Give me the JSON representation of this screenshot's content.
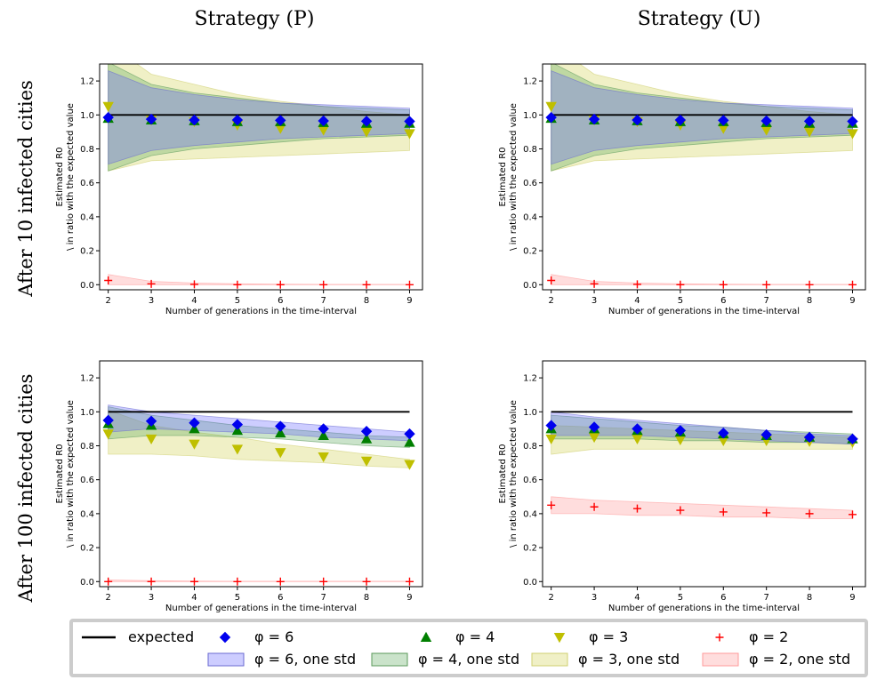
{
  "columns": [
    "Strategy (P)",
    "Strategy (U)"
  ],
  "rows": [
    "After 10 infected cities",
    "After 100 infected cities"
  ],
  "legend": {
    "rows": [
      [
        {
          "key": "expected",
          "label": "expected",
          "kind": "line",
          "color": "#000000"
        },
        {
          "key": "phi6",
          "label": "φ = 6",
          "kind": "marker",
          "marker": "diamond",
          "color": "#0000ee"
        },
        {
          "key": "phi4",
          "label": "φ = 4",
          "kind": "marker",
          "marker": "triangle-up",
          "color": "#007f00"
        },
        {
          "key": "phi3",
          "label": "φ = 3",
          "kind": "marker",
          "marker": "triangle-down",
          "color": "#bfbf00"
        },
        {
          "key": "phi2",
          "label": "φ = 2",
          "kind": "marker",
          "marker": "plus",
          "color": "#ff0000"
        }
      ],
      [
        {
          "key": "phi6std",
          "label": "φ = 6, one std",
          "kind": "band",
          "color": "#0000ff"
        },
        {
          "key": "phi4std",
          "label": "φ = 4, one std",
          "kind": "band",
          "color": "#008000"
        },
        {
          "key": "phi3std",
          "label": "φ = 3, one std",
          "kind": "band",
          "color": "#bfbf00"
        },
        {
          "key": "phi2std",
          "label": "φ = 2, one std",
          "kind": "band",
          "color": "#ff9999"
        }
      ]
    ]
  },
  "chart_data": [
    {
      "type": "scatter",
      "id": "p10",
      "xlabel": "Number of generations in the time-interval",
      "ylabel": "Estimated R0\n\\ in ratio with the expected value",
      "xlim": [
        1.8,
        9.3
      ],
      "ylim": [
        -0.03,
        1.3
      ],
      "x": [
        2,
        3,
        4,
        5,
        6,
        7,
        8,
        9
      ],
      "xticks": [
        2,
        3,
        4,
        5,
        6,
        7,
        8,
        9
      ],
      "yticks": [
        0.0,
        0.2,
        0.4,
        0.6,
        0.8,
        1.0,
        1.2
      ],
      "expected": 1.0,
      "series": [
        {
          "key": "phi3",
          "values": [
            1.05,
            0.97,
            0.96,
            0.94,
            0.92,
            0.91,
            0.9,
            0.89
          ],
          "band_low": [
            0.67,
            0.73,
            0.74,
            0.75,
            0.76,
            0.77,
            0.78,
            0.79
          ],
          "band_high": [
            1.42,
            1.24,
            1.18,
            1.12,
            1.08,
            1.05,
            1.02,
            1.0
          ]
        },
        {
          "key": "phi4",
          "values": [
            0.98,
            0.97,
            0.965,
            0.96,
            0.96,
            0.955,
            0.95,
            0.95
          ],
          "band_low": [
            0.67,
            0.76,
            0.8,
            0.82,
            0.84,
            0.86,
            0.87,
            0.88
          ],
          "band_high": [
            1.31,
            1.18,
            1.13,
            1.1,
            1.07,
            1.05,
            1.04,
            1.03
          ]
        },
        {
          "key": "phi6",
          "values": [
            0.985,
            0.975,
            0.97,
            0.97,
            0.968,
            0.965,
            0.963,
            0.962
          ],
          "band_low": [
            0.71,
            0.79,
            0.82,
            0.84,
            0.86,
            0.87,
            0.88,
            0.89
          ],
          "band_high": [
            1.26,
            1.16,
            1.12,
            1.09,
            1.07,
            1.06,
            1.05,
            1.04
          ]
        },
        {
          "key": "phi2",
          "values": [
            0.025,
            0.005,
            0.002,
            0.0,
            0.0,
            0.0,
            0.0,
            0.0
          ],
          "band_low": [
            0.0,
            0.0,
            0.0,
            0.0,
            0.0,
            0.0,
            0.0,
            0.0
          ],
          "band_high": [
            0.06,
            0.02,
            0.01,
            0.005,
            0.003,
            0.002,
            0.002,
            0.002
          ]
        }
      ]
    },
    {
      "type": "scatter",
      "id": "u10",
      "xlabel": "Number of generations in the time-interval",
      "ylabel": "Estimated R0\n\\ in ratio with the expected value",
      "xlim": [
        1.8,
        9.3
      ],
      "ylim": [
        -0.03,
        1.3
      ],
      "x": [
        2,
        3,
        4,
        5,
        6,
        7,
        8,
        9
      ],
      "xticks": [
        2,
        3,
        4,
        5,
        6,
        7,
        8,
        9
      ],
      "yticks": [
        0.0,
        0.2,
        0.4,
        0.6,
        0.8,
        1.0,
        1.2
      ],
      "expected": 1.0,
      "series": [
        {
          "key": "phi3",
          "values": [
            1.05,
            0.97,
            0.96,
            0.94,
            0.92,
            0.91,
            0.9,
            0.89
          ],
          "band_low": [
            0.67,
            0.73,
            0.74,
            0.75,
            0.76,
            0.77,
            0.78,
            0.79
          ],
          "band_high": [
            1.42,
            1.24,
            1.18,
            1.12,
            1.08,
            1.05,
            1.02,
            1.0
          ]
        },
        {
          "key": "phi4",
          "values": [
            0.98,
            0.97,
            0.965,
            0.96,
            0.96,
            0.955,
            0.95,
            0.95
          ],
          "band_low": [
            0.67,
            0.76,
            0.8,
            0.82,
            0.84,
            0.86,
            0.87,
            0.88
          ],
          "band_high": [
            1.31,
            1.18,
            1.13,
            1.1,
            1.07,
            1.05,
            1.04,
            1.03
          ]
        },
        {
          "key": "phi6",
          "values": [
            0.985,
            0.975,
            0.97,
            0.97,
            0.968,
            0.965,
            0.963,
            0.962
          ],
          "band_low": [
            0.71,
            0.79,
            0.82,
            0.84,
            0.86,
            0.87,
            0.88,
            0.89
          ],
          "band_high": [
            1.26,
            1.16,
            1.12,
            1.09,
            1.07,
            1.06,
            1.05,
            1.04
          ]
        },
        {
          "key": "phi2",
          "values": [
            0.025,
            0.005,
            0.002,
            0.0,
            0.0,
            0.0,
            0.0,
            0.0
          ],
          "band_low": [
            0.0,
            0.0,
            0.0,
            0.0,
            0.0,
            0.0,
            0.0,
            0.0
          ],
          "band_high": [
            0.06,
            0.02,
            0.01,
            0.005,
            0.003,
            0.002,
            0.002,
            0.002
          ]
        }
      ]
    },
    {
      "type": "scatter",
      "id": "p100",
      "xlabel": "Number of generations in the time-interval",
      "ylabel": "Estimated R0\n\\ in ratio with the expected value",
      "xlim": [
        1.8,
        9.3
      ],
      "ylim": [
        -0.03,
        1.3
      ],
      "x": [
        2,
        3,
        4,
        5,
        6,
        7,
        8,
        9
      ],
      "xticks": [
        2,
        3,
        4,
        5,
        6,
        7,
        8,
        9
      ],
      "yticks": [
        0.0,
        0.2,
        0.4,
        0.6,
        0.8,
        1.0,
        1.2
      ],
      "expected": 1.0,
      "series": [
        {
          "key": "phi3",
          "values": [
            0.87,
            0.84,
            0.81,
            0.78,
            0.76,
            0.735,
            0.71,
            0.69
          ],
          "band_low": [
            0.75,
            0.75,
            0.74,
            0.72,
            0.71,
            0.7,
            0.68,
            0.67
          ],
          "band_high": [
            1.01,
            0.92,
            0.88,
            0.85,
            0.81,
            0.78,
            0.75,
            0.72
          ]
        },
        {
          "key": "phi4",
          "values": [
            0.93,
            0.92,
            0.9,
            0.89,
            0.875,
            0.86,
            0.84,
            0.82
          ],
          "band_low": [
            0.84,
            0.86,
            0.86,
            0.85,
            0.84,
            0.82,
            0.8,
            0.79
          ],
          "band_high": [
            1.03,
            0.98,
            0.95,
            0.92,
            0.9,
            0.88,
            0.86,
            0.85
          ]
        },
        {
          "key": "phi6",
          "values": [
            0.95,
            0.945,
            0.935,
            0.925,
            0.915,
            0.9,
            0.885,
            0.87
          ],
          "band_low": [
            0.88,
            0.9,
            0.89,
            0.88,
            0.87,
            0.85,
            0.84,
            0.83
          ],
          "band_high": [
            1.04,
            1.0,
            0.98,
            0.96,
            0.94,
            0.92,
            0.9,
            0.88
          ]
        },
        {
          "key": "phi2",
          "values": [
            0.0,
            0.0,
            0.0,
            0.0,
            0.0,
            0.0,
            0.0,
            0.0
          ],
          "band_low": [
            0.0,
            0.0,
            0.0,
            0.0,
            0.0,
            0.0,
            0.0,
            0.0
          ],
          "band_high": [
            0.01,
            0.005,
            0.003,
            0.002,
            0.002,
            0.002,
            0.002,
            0.002
          ]
        }
      ]
    },
    {
      "type": "scatter",
      "id": "u100",
      "xlabel": "Number of generations in the time-interval",
      "ylabel": "Estimated R0\n\\ in ratio with the expected value",
      "xlim": [
        1.8,
        9.3
      ],
      "ylim": [
        -0.03,
        1.3
      ],
      "x": [
        2,
        3,
        4,
        5,
        6,
        7,
        8,
        9
      ],
      "xticks": [
        2,
        3,
        4,
        5,
        6,
        7,
        8,
        9
      ],
      "yticks": [
        0.0,
        0.2,
        0.4,
        0.6,
        0.8,
        1.0,
        1.2
      ],
      "expected": 1.0,
      "series": [
        {
          "key": "phi3",
          "values": [
            0.84,
            0.85,
            0.84,
            0.835,
            0.83,
            0.83,
            0.825,
            0.82
          ],
          "band_low": [
            0.75,
            0.78,
            0.78,
            0.78,
            0.78,
            0.78,
            0.78,
            0.78
          ],
          "band_high": [
            0.92,
            0.91,
            0.9,
            0.89,
            0.88,
            0.87,
            0.86,
            0.85
          ]
        },
        {
          "key": "phi4",
          "values": [
            0.9,
            0.9,
            0.89,
            0.88,
            0.87,
            0.86,
            0.85,
            0.84
          ],
          "band_low": [
            0.84,
            0.84,
            0.84,
            0.83,
            0.83,
            0.82,
            0.82,
            0.81
          ],
          "band_high": [
            0.98,
            0.96,
            0.94,
            0.92,
            0.91,
            0.89,
            0.88,
            0.87
          ]
        },
        {
          "key": "phi6",
          "values": [
            0.92,
            0.91,
            0.9,
            0.89,
            0.875,
            0.865,
            0.85,
            0.84
          ],
          "band_low": [
            0.86,
            0.86,
            0.86,
            0.85,
            0.84,
            0.83,
            0.82,
            0.81
          ],
          "band_high": [
            1.0,
            0.97,
            0.95,
            0.93,
            0.91,
            0.89,
            0.87,
            0.86
          ]
        },
        {
          "key": "phi2",
          "values": [
            0.45,
            0.44,
            0.43,
            0.42,
            0.41,
            0.405,
            0.4,
            0.395
          ],
          "band_low": [
            0.4,
            0.4,
            0.39,
            0.39,
            0.38,
            0.38,
            0.37,
            0.37
          ],
          "band_high": [
            0.5,
            0.48,
            0.47,
            0.46,
            0.45,
            0.44,
            0.43,
            0.42
          ]
        }
      ]
    }
  ]
}
